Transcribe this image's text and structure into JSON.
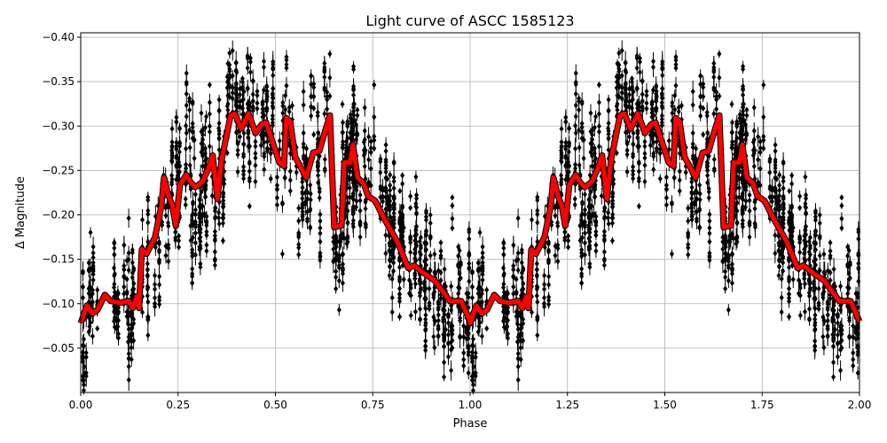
{
  "chart_data": {
    "type": "scatter",
    "title": "Light curve of ASCC 1585123",
    "xlabel": "Phase",
    "ylabel": "Δ Magnitude",
    "xlim": [
      0,
      2
    ],
    "ylim": [
      -0.405,
      0.0
    ],
    "y_inverted": true,
    "grid": true,
    "xticks": [
      "0.00",
      "0.25",
      "0.50",
      "0.75",
      "1.00",
      "1.25",
      "1.50",
      "1.75",
      "2.00"
    ],
    "yticks": [
      "−0.40",
      "−0.35",
      "−0.30",
      "−0.25",
      "−0.20",
      "−0.15",
      "−0.10",
      "−0.05"
    ],
    "ytick_values": [
      -0.4,
      -0.35,
      -0.3,
      -0.25,
      -0.2,
      -0.15,
      -0.1,
      -0.05
    ],
    "xtick_values": [
      0,
      0.25,
      0.5,
      0.75,
      1,
      1.25,
      1.5,
      1.75,
      2
    ],
    "observations": {
      "color": "#000000",
      "marker": "diamond with error bars",
      "repeats_every_phase": 1
    },
    "model_curve": {
      "color": "#ff0000",
      "repeats_every_phase": 1,
      "phase": [
        0.0,
        0.016,
        0.03,
        0.043,
        0.062,
        0.077,
        0.1,
        0.123,
        0.134,
        0.144,
        0.15,
        0.157,
        0.169,
        0.191,
        0.207,
        0.214,
        0.226,
        0.235,
        0.244,
        0.255,
        0.271,
        0.282,
        0.294,
        0.312,
        0.328,
        0.339,
        0.351,
        0.362,
        0.385,
        0.396,
        0.412,
        0.431,
        0.449,
        0.465,
        0.476,
        0.51,
        0.522,
        0.528,
        0.538,
        0.551,
        0.567,
        0.579,
        0.597,
        0.613,
        0.624,
        0.64,
        0.651,
        0.67,
        0.677,
        0.692,
        0.699,
        0.711,
        0.727,
        0.738,
        0.756,
        0.779,
        0.813,
        0.841,
        0.856,
        0.87,
        0.886,
        0.909,
        0.948,
        0.977,
        1.0
      ],
      "mag": [
        -0.078,
        -0.098,
        -0.089,
        -0.093,
        -0.11,
        -0.103,
        -0.101,
        -0.103,
        -0.095,
        -0.108,
        -0.095,
        -0.161,
        -0.156,
        -0.175,
        -0.21,
        -0.242,
        -0.221,
        -0.211,
        -0.188,
        -0.234,
        -0.245,
        -0.237,
        -0.231,
        -0.237,
        -0.252,
        -0.267,
        -0.218,
        -0.262,
        -0.312,
        -0.314,
        -0.297,
        -0.314,
        -0.292,
        -0.302,
        -0.304,
        -0.259,
        -0.255,
        -0.309,
        -0.305,
        -0.265,
        -0.252,
        -0.242,
        -0.27,
        -0.272,
        -0.289,
        -0.312,
        -0.186,
        -0.188,
        -0.259,
        -0.259,
        -0.279,
        -0.242,
        -0.235,
        -0.221,
        -0.216,
        -0.196,
        -0.17,
        -0.14,
        -0.143,
        -0.138,
        -0.133,
        -0.126,
        -0.103,
        -0.103,
        -0.08
      ]
    }
  }
}
